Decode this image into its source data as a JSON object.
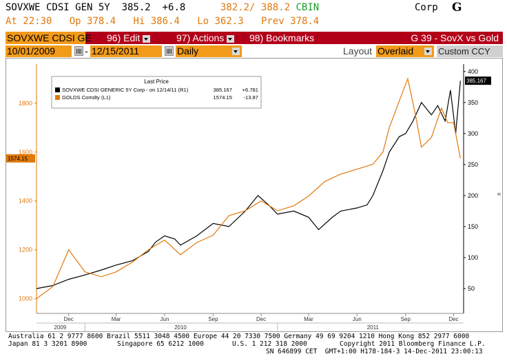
{
  "header": {
    "ticker": "SOVXWE CDSI GEN 5Y",
    "last": "385.2",
    "change": "+6.8",
    "bid": "382.2",
    "ask": "388.2",
    "source": "CBIN",
    "market": "Corp",
    "logo": "G",
    "time_label": "At 22:30",
    "open_label": "Op 378.4",
    "high_label": "Hi 386.4",
    "low_label": "Lo 362.3",
    "prev_label": "Prev 378.4"
  },
  "toolbar": {
    "ticker_box": "SOVXWE CDSI GE",
    "edit": "96) Edit",
    "actions": "97) Actions",
    "bookmarks": "98) Bookmarks",
    "page": "G 39 - SovX vs Gold"
  },
  "controls": {
    "start_date": "10/01/2009",
    "end_date": "12/15/2011",
    "period": "Daily",
    "layout_label": "Layout",
    "layout_value": "Overlaid",
    "custom": "Custom CCY"
  },
  "colors": {
    "orange": "#e0780c",
    "red_bar": "#b30019",
    "field": "#f29a1a",
    "black": "#000000"
  },
  "chart_data": {
    "type": "line",
    "legend": {
      "title": "Last Price",
      "rows": [
        {
          "label": "SOVXWE CDSI GENERIC 5Y Corp - on 12/14/11 (R1)",
          "last": "385.167",
          "change": "+6.781"
        },
        {
          "label": "GOLDS Comdty (L1)",
          "last": "1574.15",
          "change": "-13.87"
        }
      ]
    },
    "left_axis": {
      "ylim": [
        940,
        1960
      ],
      "ticks": [
        "1000",
        "1200",
        "1400",
        "1600",
        "1800"
      ],
      "current_label": "1574.15"
    },
    "right_axis": {
      "ylim": [
        10,
        412
      ],
      "ticks": [
        "50",
        "100",
        "150",
        "200",
        "250",
        "300",
        "350",
        "400"
      ],
      "current_label": "385.167"
    },
    "x_axis": {
      "months": [
        "Dec",
        "Mar",
        "Jun",
        "Sep",
        "Dec",
        "Mar",
        "Jun",
        "Sep",
        "Dec"
      ],
      "years": [
        "2009",
        "2010",
        "2011"
      ]
    },
    "series": [
      {
        "name": "SOVXWE CDSI GENERIC 5Y Corp",
        "axis": "right",
        "x": [
          "2009-10-01",
          "2009-11-01",
          "2009-12-01",
          "2010-01-01",
          "2010-02-01",
          "2010-03-01",
          "2010-04-01",
          "2010-05-01",
          "2010-05-15",
          "2010-06-01",
          "2010-06-20",
          "2010-07-01",
          "2010-08-01",
          "2010-09-01",
          "2010-10-01",
          "2010-11-01",
          "2010-11-25",
          "2010-12-15",
          "2011-01-01",
          "2011-02-01",
          "2011-03-01",
          "2011-03-20",
          "2011-04-15",
          "2011-05-01",
          "2011-06-01",
          "2011-06-20",
          "2011-07-01",
          "2011-07-20",
          "2011-08-01",
          "2011-08-20",
          "2011-09-01",
          "2011-09-15",
          "2011-10-01",
          "2011-10-20",
          "2011-11-01",
          "2011-11-15",
          "2011-11-25",
          "2011-12-05",
          "2011-12-14"
        ],
        "values": [
          50,
          55,
          65,
          72,
          80,
          88,
          95,
          110,
          125,
          135,
          130,
          120,
          135,
          155,
          150,
          175,
          200,
          185,
          170,
          175,
          165,
          145,
          165,
          175,
          180,
          185,
          200,
          240,
          270,
          295,
          300,
          320,
          350,
          330,
          345,
          320,
          370,
          300,
          385
        ]
      },
      {
        "name": "GOLDS Comdty",
        "axis": "left",
        "x": [
          "2009-10-01",
          "2009-11-01",
          "2009-12-01",
          "2010-01-01",
          "2010-02-01",
          "2010-03-01",
          "2010-04-01",
          "2010-05-01",
          "2010-06-01",
          "2010-07-01",
          "2010-08-01",
          "2010-09-01",
          "2010-10-01",
          "2010-11-01",
          "2010-12-01",
          "2011-01-01",
          "2011-02-01",
          "2011-03-01",
          "2011-04-01",
          "2011-05-01",
          "2011-06-01",
          "2011-07-01",
          "2011-07-20",
          "2011-08-01",
          "2011-08-22",
          "2011-09-05",
          "2011-09-20",
          "2011-10-01",
          "2011-10-20",
          "2011-11-08",
          "2011-11-20",
          "2011-12-01",
          "2011-12-14"
        ],
        "values": [
          1000,
          1050,
          1200,
          1110,
          1090,
          1110,
          1150,
          1200,
          1240,
          1180,
          1230,
          1260,
          1340,
          1360,
          1400,
          1360,
          1380,
          1420,
          1480,
          1510,
          1530,
          1550,
          1600,
          1700,
          1820,
          1900,
          1750,
          1620,
          1660,
          1780,
          1720,
          1720,
          1574
        ]
      }
    ]
  },
  "footer": {
    "line1": "Australia 61 2 9777 8600 Brazil 5511 3048 4500 Europe 44 20 7330 7500 Germany 49 69 9204 1210 Hong Kong 852 2977 6000",
    "line2a": "Japan 81 3 3201 8900",
    "line2b": "Singapore 65 6212 1000",
    "line2c": "U.S. 1 212 318 2000",
    "line2d": "Copyright 2011 Bloomberg Finance L.P.",
    "line3": "SN 646899 CET  GMT+1:00 H178-184-3 14-Dec-2011 23:00:13"
  }
}
